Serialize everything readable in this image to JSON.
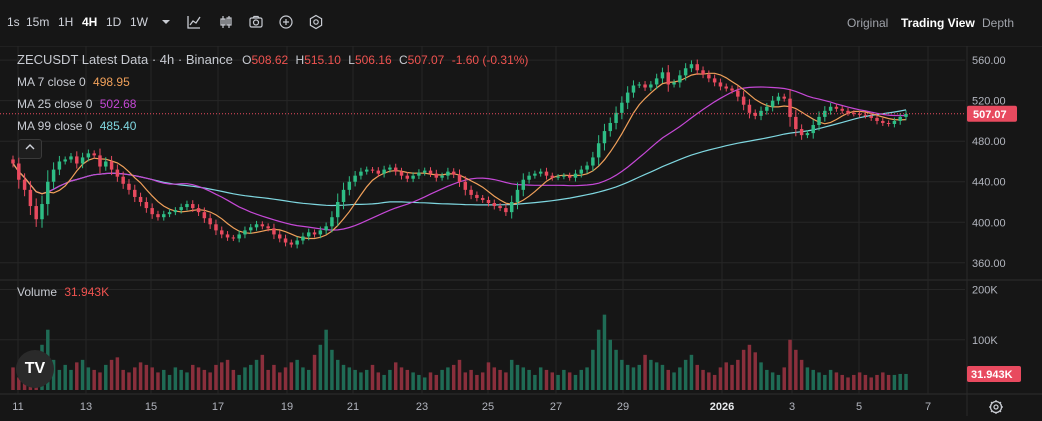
{
  "toolbar": {
    "intervals": [
      "1s",
      "15m",
      "1H",
      "4H",
      "1D",
      "1W"
    ],
    "active_interval": "4H",
    "views": [
      "Original",
      "Trading View",
      "Depth"
    ],
    "active_view": "Trading View",
    "icons": [
      "chevron-down-icon",
      "indicator-icon",
      "candle-type-icon",
      "camera-icon",
      "plus-circle-icon",
      "settings-hex-icon"
    ]
  },
  "legend": {
    "symbol_line": "ZECUSDT Latest Data · 4h · Binance",
    "o_label": "O",
    "o_value": "508.62",
    "h_label": "H",
    "h_value": "515.10",
    "l_label": "L",
    "l_value": "506.16",
    "c_label": "C",
    "c_value": "507.07",
    "change": "-1.60 (-0.31%)",
    "ma7_label": "MA 7 close 0",
    "ma7_value": "498.95",
    "ma25_label": "MA 25 close 0",
    "ma25_value": "502.68",
    "ma99_label": "MA 99 close 0",
    "ma99_value": "485.40",
    "volume_label": "Volume",
    "volume_value": "31.943K"
  },
  "colors": {
    "up": "#26a69a",
    "down": "#ef5350",
    "up_candle": "#2ebd85",
    "down_candle": "#e84a5f",
    "ma7": "#f0a05a",
    "ma25": "#c548d6",
    "ma99": "#7fd7e0",
    "grid": "#262626",
    "last_price_bg": "#e84a5f"
  },
  "chart_data": {
    "type": "candlestick",
    "title": "ZECUSDT Latest Data · 4h · Binance",
    "x_ticks": [
      "11",
      "13",
      "15",
      "17",
      "19",
      "21",
      "23",
      "25",
      "27",
      "29",
      "2026",
      "3",
      "5",
      "7"
    ],
    "price_ticks": [
      360,
      400,
      440,
      480,
      520,
      560
    ],
    "price_tick_labels": [
      "360.00",
      "400.00",
      "440.00",
      "480.00",
      "520.00",
      "560.00"
    ],
    "ylim": [
      345,
      572
    ],
    "last_price": "507.07",
    "volume_ticks": [
      "100K",
      "200K"
    ],
    "volume_ylim": [
      0,
      215
    ],
    "closes": [
      458,
      442,
      432,
      416,
      403,
      418,
      440,
      452,
      460,
      462,
      465,
      458,
      464,
      468,
      466,
      455,
      460,
      452,
      445,
      438,
      432,
      425,
      420,
      414,
      408,
      405,
      408,
      410,
      412,
      415,
      418,
      414,
      410,
      404,
      398,
      392,
      388,
      385,
      384,
      388,
      392,
      395,
      398,
      396,
      394,
      388,
      384,
      380,
      378,
      382,
      386,
      390,
      388,
      392,
      396,
      405,
      420,
      432,
      440,
      446,
      450,
      452,
      451,
      448,
      452,
      454,
      450,
      446,
      443,
      446,
      449,
      451,
      448,
      444,
      446,
      450,
      447,
      440,
      432,
      427,
      424,
      422,
      419,
      416,
      414,
      410,
      420,
      432,
      442,
      446,
      448,
      450,
      446,
      444,
      445,
      446,
      444,
      448,
      452,
      456,
      464,
      478,
      490,
      498,
      508,
      518,
      528,
      535,
      536,
      533,
      536,
      542,
      548,
      536,
      538,
      545,
      552,
      556,
      550,
      546,
      542,
      538,
      534,
      532,
      530,
      524,
      516,
      508,
      505,
      510,
      514,
      520,
      524,
      522,
      504,
      492,
      486,
      488,
      496,
      504,
      510,
      514,
      512,
      510,
      508,
      507,
      506,
      505,
      503,
      500,
      498,
      497,
      500,
      504,
      507
    ],
    "volumes": [
      45,
      25,
      30,
      50,
      70,
      90,
      120,
      60,
      40,
      50,
      40,
      55,
      60,
      45,
      40,
      35,
      50,
      60,
      65,
      40,
      35,
      45,
      55,
      50,
      45,
      35,
      40,
      30,
      45,
      40,
      35,
      50,
      45,
      40,
      35,
      50,
      55,
      60,
      40,
      30,
      45,
      50,
      60,
      70,
      40,
      50,
      35,
      45,
      55,
      60,
      45,
      40,
      70,
      90,
      120,
      80,
      60,
      50,
      45,
      40,
      35,
      40,
      50,
      35,
      30,
      40,
      55,
      45,
      40,
      35,
      30,
      25,
      35,
      30,
      40,
      45,
      50,
      60,
      35,
      40,
      30,
      35,
      55,
      45,
      40,
      35,
      60,
      50,
      45,
      40,
      30,
      45,
      40,
      35,
      30,
      40,
      35,
      30,
      40,
      45,
      80,
      120,
      150,
      100,
      80,
      60,
      50,
      45,
      50,
      70,
      60,
      55,
      50,
      40,
      35,
      45,
      60,
      70,
      50,
      40,
      35,
      30,
      45,
      55,
      50,
      60,
      80,
      90,
      75,
      55,
      40,
      35,
      30,
      45,
      100,
      80,
      60,
      45,
      40,
      35,
      30,
      40,
      35,
      30,
      25,
      30,
      35,
      30,
      25,
      30,
      35,
      30,
      30,
      32,
      31.943
    ]
  }
}
